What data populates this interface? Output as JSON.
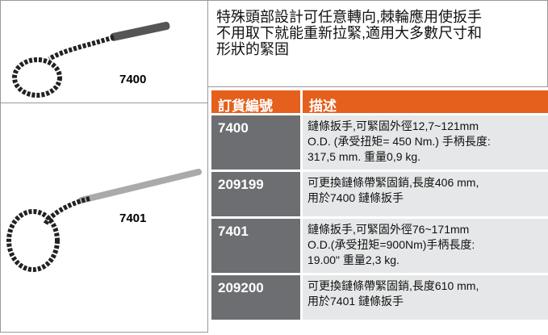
{
  "products": [
    {
      "label": "7400"
    },
    {
      "label": "7401"
    }
  ],
  "intro": {
    "lines": [
      "特殊頭部設計可任意轉向,棘輪應用使扳手",
      "不用取下就能重新拉緊,適用大多數尺寸和",
      "形狀的緊固"
    ]
  },
  "table": {
    "header": [
      "訂貨編號",
      "描述"
    ],
    "rows": [
      {
        "code": "7400",
        "lines": [
          "鏈條扳手,可緊固外徑12,7~121mm",
          "O.D. (承受扭矩= 450 Nm.) 手柄長度:",
          "317,5 mm. 重量0,9 kg."
        ]
      },
      {
        "code": "209199",
        "lines": [
          "可更換鏈條帶緊固銷,長度406 mm,",
          "用於7400 鏈條扳手"
        ]
      },
      {
        "code": "7401",
        "lines": [
          "鏈條扳手,可緊固外徑76~171mm",
          "O.D.(承受扭矩=900Nm)手柄長度:",
          "19.00\" 重量2,3 kg."
        ]
      },
      {
        "code": "209200",
        "lines": [
          "可更換鏈條帶緊固銷,長度610 mm,",
          "用於7401 鏈條扳手"
        ]
      }
    ]
  }
}
